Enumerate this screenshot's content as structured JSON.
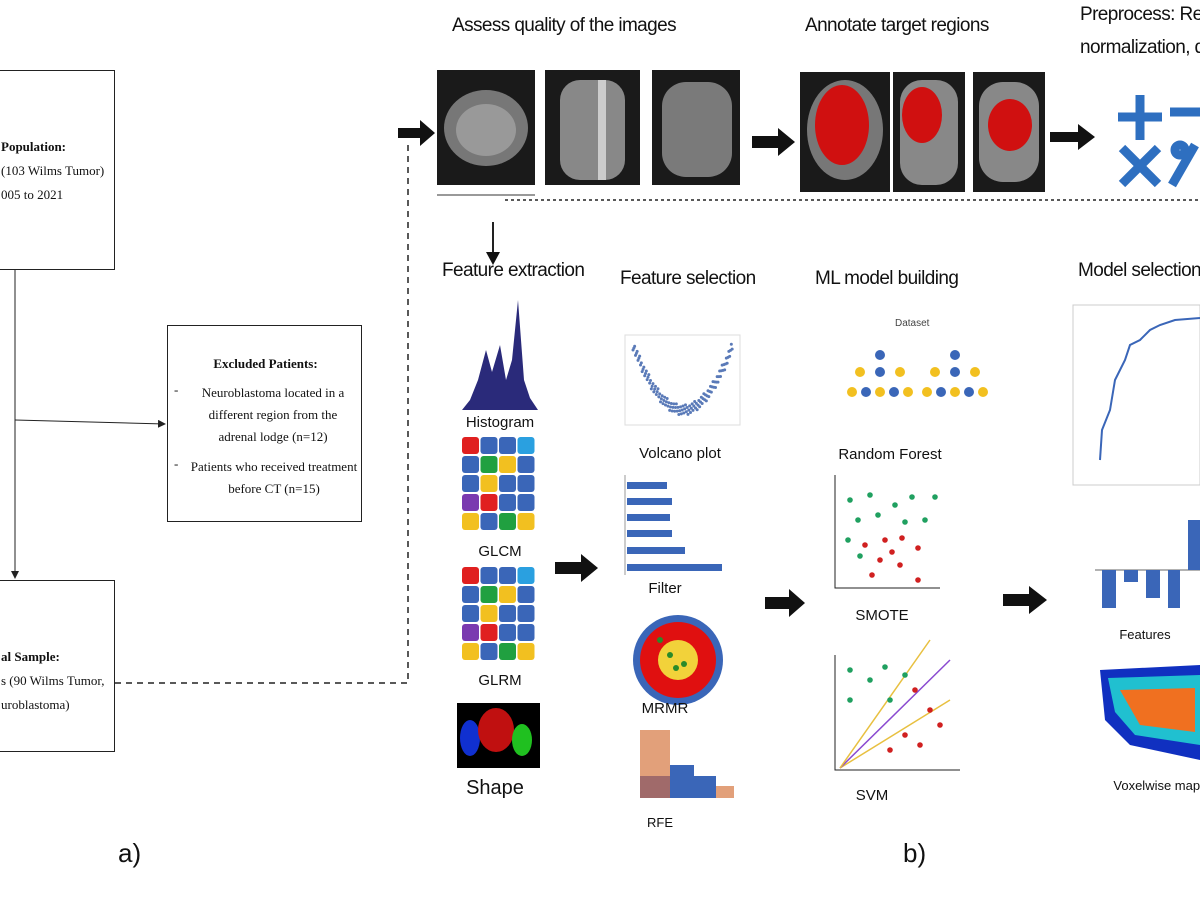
{
  "left_panel": {
    "population_box": {
      "title": "Population:",
      "lines": [
        "(103 Wilms Tumor)",
        "005 to 2021"
      ]
    },
    "excluded_box": {
      "title": "Excluded Patients:",
      "items": [
        "Neuroblastoma located in a different region from the adrenal lodge (n=12)",
        "Patients who received treatment before CT (n=15)"
      ]
    },
    "sample_box": {
      "title": "al Sample:",
      "lines": [
        "s (90 Wilms Tumor,",
        "uroblastoma)"
      ]
    },
    "label": "a)"
  },
  "right_panel": {
    "label": "b)",
    "steps": {
      "assess": "Assess quality of the images",
      "annotate": "Annotate target regions",
      "preprocess": [
        "Preprocess: Resa",
        "normalization, q"
      ]
    },
    "feature_extraction": {
      "title": "Feature extraction",
      "items": [
        "Histogram",
        "GLCM",
        "GLRM",
        "Shape"
      ]
    },
    "feature_selection": {
      "title": "Feature selection",
      "items": [
        "Volcano plot",
        "Filter",
        "MRMR",
        "RFE"
      ]
    },
    "ml_model_building": {
      "title": "ML model building",
      "dataset": "Dataset",
      "items": [
        "Random Forest",
        "SMOTE",
        "SVM"
      ]
    },
    "model_selection": {
      "title": "Model selection-",
      "items": [
        "Features",
        "Voxelwise maps"
      ]
    }
  }
}
